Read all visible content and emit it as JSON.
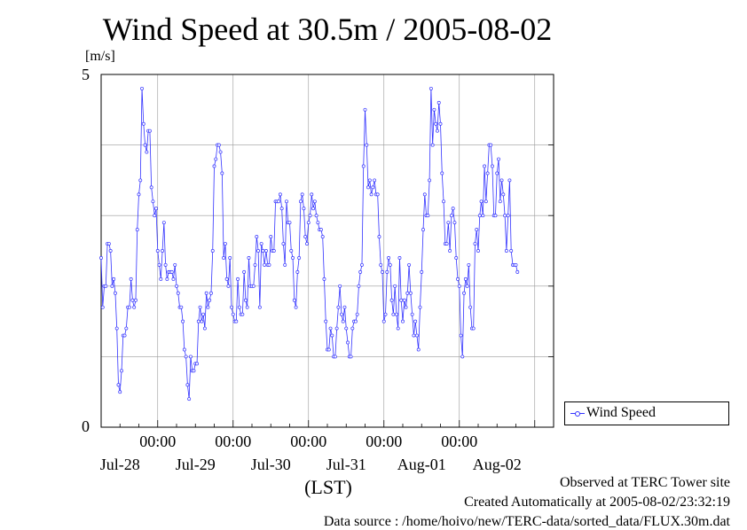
{
  "title": "Wind Speed at 30.5m / 2005-08-02",
  "y_unit": "[m/s]",
  "x_axis_label": "(LST)",
  "legend_label": "Wind Speed",
  "footer": {
    "observed": "Observed at TERC Tower site",
    "created": "Created Automatically at 2005-08-02/23:32:19",
    "source": "Data source : /home/hoivo/new/TERC-data/sorted_data/FLUX.30m.dat"
  },
  "colors": {
    "series": "#3333ff",
    "grid": "#999999"
  },
  "chart_data": {
    "type": "line",
    "title": "Wind Speed at 30.5m / 2005-08-02",
    "ylabel": "[m/s]",
    "xlabel": "(LST)",
    "ylim": [
      0,
      5
    ],
    "y_ticks": [
      0,
      5
    ],
    "x_range_hours": [
      -18,
      126
    ],
    "x_time_ticks": [
      "00:00",
      "00:00",
      "00:00",
      "00:00",
      "00:00"
    ],
    "x_day_labels": [
      "Jul-28",
      "Jul-29",
      "Jul-30",
      "Jul-31",
      "Aug-01",
      "Aug-02"
    ],
    "grid": true,
    "legend": "right",
    "series": [
      {
        "name": "Wind Speed",
        "x_start_hour": -18,
        "step_hours": 0.5,
        "values": [
          2.4,
          1.7,
          2.0,
          2.0,
          2.6,
          2.6,
          2.5,
          2.0,
          2.1,
          1.9,
          1.4,
          0.6,
          0.5,
          0.8,
          1.3,
          1.3,
          1.4,
          1.7,
          1.7,
          2.1,
          1.8,
          1.7,
          1.8,
          2.8,
          3.3,
          3.5,
          4.8,
          4.3,
          4.0,
          3.9,
          4.2,
          4.2,
          3.4,
          3.2,
          3.0,
          3.1,
          2.5,
          2.3,
          2.1,
          2.5,
          2.9,
          2.3,
          2.1,
          2.2,
          2.2,
          2.2,
          2.1,
          2.3,
          2.0,
          1.9,
          1.7,
          1.7,
          1.5,
          1.1,
          1.0,
          0.6,
          0.4,
          1.0,
          0.8,
          0.8,
          0.9,
          0.9,
          1.5,
          1.7,
          1.5,
          1.6,
          1.4,
          1.9,
          1.7,
          1.8,
          1.9,
          2.5,
          3.7,
          3.8,
          4.0,
          4.0,
          3.9,
          3.6,
          2.4,
          2.6,
          2.1,
          2.0,
          2.4,
          1.7,
          1.6,
          1.5,
          1.5,
          2.1,
          1.7,
          1.6,
          1.6,
          2.2,
          1.8,
          1.7,
          2.4,
          2.0,
          2.0,
          2.0,
          2.3,
          2.7,
          2.5,
          1.7,
          2.6,
          2.5,
          2.3,
          2.5,
          2.3,
          2.3,
          2.7,
          2.5,
          2.5,
          3.2,
          3.2,
          3.2,
          3.3,
          3.1,
          2.6,
          2.3,
          3.2,
          2.9,
          2.9,
          2.5,
          2.4,
          1.8,
          1.7,
          2.2,
          2.4,
          3.2,
          3.3,
          3.1,
          2.7,
          2.6,
          2.9,
          3.0,
          3.3,
          3.1,
          3.2,
          3.0,
          2.9,
          2.8,
          2.8,
          2.7,
          2.1,
          1.5,
          1.1,
          1.1,
          1.4,
          1.3,
          1.0,
          1.0,
          1.4,
          1.7,
          2.0,
          1.6,
          1.5,
          1.7,
          1.4,
          1.2,
          1.0,
          1.0,
          1.4,
          1.5,
          1.5,
          1.6,
          2.0,
          2.2,
          2.3,
          3.7,
          4.5,
          4.0,
          3.4,
          3.5,
          3.3,
          3.4,
          3.5,
          3.3,
          3.3,
          2.7,
          2.3,
          2.2,
          1.5,
          1.6,
          2.2,
          2.4,
          2.3,
          1.8,
          1.6,
          2.0,
          1.6,
          1.4,
          2.4,
          1.8,
          1.5,
          1.8,
          1.7,
          1.9,
          2.3,
          1.9,
          1.6,
          1.3,
          1.5,
          1.3,
          1.1,
          1.7,
          2.2,
          2.8,
          3.3,
          3.0,
          3.0,
          3.5,
          4.8,
          4.0,
          4.5,
          4.3,
          4.2,
          4.6,
          4.3,
          3.6,
          3.2,
          2.6,
          2.6,
          2.9,
          2.5,
          3.0,
          3.1,
          2.9,
          2.4,
          2.1,
          2.0,
          1.3,
          1.0,
          1.9,
          2.1,
          2.0,
          2.3,
          1.7,
          1.4,
          1.4,
          2.6,
          2.8,
          2.5,
          3.0,
          3.2,
          3.0,
          3.7,
          3.2,
          3.6,
          4.0,
          4.0,
          3.7,
          3.0,
          3.0,
          3.6,
          3.8,
          3.2,
          3.5,
          3.3,
          3.0,
          2.5,
          3.0,
          3.5,
          2.5,
          2.3,
          2.3,
          2.3,
          2.2
        ]
      }
    ]
  }
}
